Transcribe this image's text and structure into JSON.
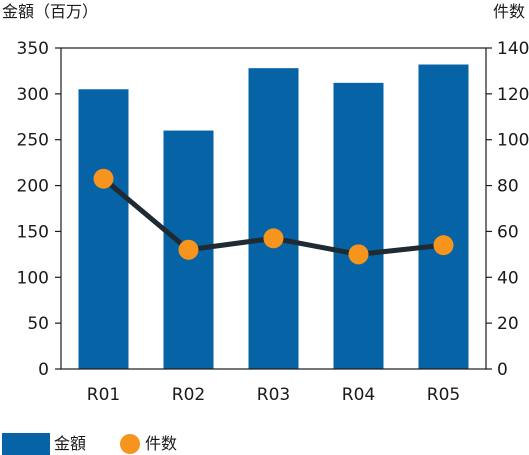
{
  "chart_data": {
    "type": "bar",
    "categories": [
      "R01",
      "R02",
      "R03",
      "R04",
      "R05"
    ],
    "series": [
      {
        "name": "金額",
        "kind": "bar",
        "axis": "left",
        "color": "#0563a6",
        "values": [
          305,
          260,
          328,
          312,
          332
        ]
      },
      {
        "name": "件数",
        "kind": "line",
        "axis": "right",
        "color": "#f7941d",
        "line_color": "#1f2a33",
        "values": [
          83,
          52,
          57,
          50,
          54
        ]
      }
    ],
    "ylabel": "金額（百万）",
    "y2label": "件数",
    "ylim": [
      0,
      350
    ],
    "y2lim": [
      0,
      140
    ],
    "yticks": [
      "0",
      "50",
      "100",
      "150",
      "200",
      "250",
      "300",
      "350"
    ],
    "y2ticks": [
      "0",
      "20",
      "40",
      "60",
      "80",
      "100",
      "120",
      "140"
    ],
    "grid": false,
    "legend_position": "bottom-left"
  }
}
